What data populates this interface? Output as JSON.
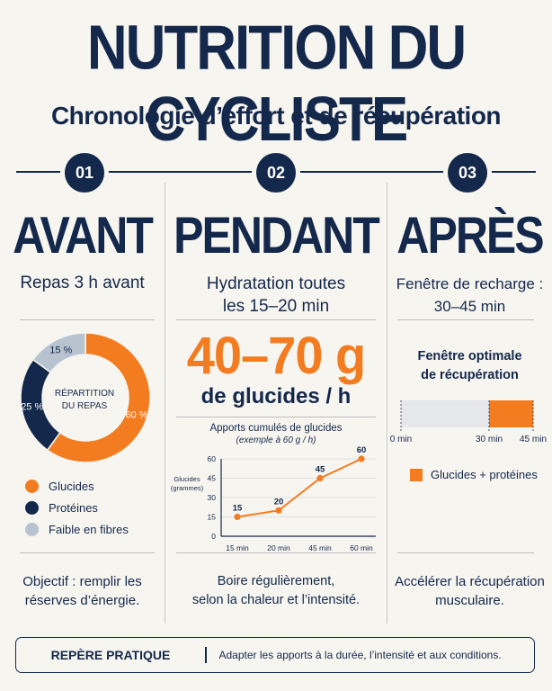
{
  "header": {
    "title": "NUTRITION DU CYCLISTE",
    "subtitle": "Chronologie d’effort et de récupération"
  },
  "colors": {
    "navy": "#14284b",
    "orange": "#f47c20",
    "grey_blue": "#b7c3cf",
    "light_grey": "#e5e7eb"
  },
  "columns": [
    {
      "number": "01",
      "heading": "AVANT",
      "subheading": "Repas 3 h avant",
      "footer": [
        "Objectif : remplir les",
        "réserves d’énergie."
      ]
    },
    {
      "number": "02",
      "heading": "PENDANT",
      "subheading": [
        "Hydratation toutes",
        "les 15–20 min"
      ],
      "big_value": "40–70 g",
      "big_label": "de glucides / h",
      "footer": [
        "Boire régulièrement,",
        "selon la chaleur et l’intensité."
      ]
    },
    {
      "number": "03",
      "heading": "APRÈS",
      "subheading": [
        "Fenêtre de recharge :",
        "30–45 min"
      ],
      "footer": [
        "Accélérer la récupération",
        "musculaire."
      ]
    }
  ],
  "chart_data": [
    {
      "type": "pie",
      "title": "RÉPARTITION DU REPAS",
      "title_lines": [
        "RÉPARTITION",
        "DU REPAS"
      ],
      "categories": [
        "Glucides",
        "Protéines",
        "Faible en fibres"
      ],
      "values": [
        60,
        25,
        15
      ],
      "labels": [
        "60 %",
        "25 %",
        "15 %"
      ],
      "colors": [
        "#f47c20",
        "#14284b",
        "#b7c3cf"
      ],
      "donut": true,
      "legend": "bottom"
    },
    {
      "type": "line",
      "title": "Apports cumulés de glucides",
      "subtitle": "(exemple à 60 g / h)",
      "categories": [
        "15 min",
        "20 min",
        "45 min",
        "60 min"
      ],
      "x": [
        15,
        20,
        45,
        60
      ],
      "values": [
        15,
        20,
        45,
        60
      ],
      "ylabel_lines": [
        "Glucides",
        "(grammes)"
      ],
      "ylim": [
        0,
        60
      ],
      "yticks": [
        0,
        15,
        30,
        45,
        60
      ],
      "grid": true,
      "color": "#f47c20"
    },
    {
      "type": "bar",
      "title": "Fenêtre optimale de récupération",
      "title_lines": [
        "Fenêtre optimale",
        "de récupération"
      ],
      "segments": [
        {
          "from": 0,
          "to": 30,
          "color": "#e5e7eb"
        },
        {
          "from": 30,
          "to": 45,
          "color": "#f47c20"
        }
      ],
      "tick_labels": [
        "0 min",
        "30 min",
        "45 min"
      ],
      "ticks": [
        0,
        30,
        45
      ],
      "xlim": [
        0,
        45
      ],
      "legend": "Glucides + protéines",
      "legend_color": "#f47c20"
    }
  ],
  "repere": {
    "label": "REPÈRE PRATIQUE",
    "text": "Adapter les apports à la durée, l’intensité et aux conditions."
  }
}
